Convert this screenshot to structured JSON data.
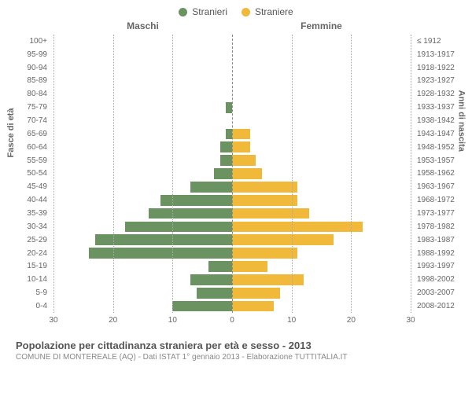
{
  "legend": {
    "male_label": "Stranieri",
    "female_label": "Straniere"
  },
  "headers": {
    "left": "Maschi",
    "right": "Femmine"
  },
  "axis_titles": {
    "left": "Fasce di età",
    "right": "Anni di nascita"
  },
  "chart": {
    "type": "population-pyramid",
    "male_color": "#6b9362",
    "female_color": "#f1b93a",
    "grid_color": "#aaaaaa",
    "center_line_color": "#888888",
    "background_color": "#ffffff",
    "text_color": "#666666",
    "xmax": 30,
    "x_ticks": [
      30,
      20,
      10,
      0,
      10,
      20,
      30
    ],
    "bar_fill_ratio": 0.82,
    "age_groups": [
      {
        "age": "100+",
        "birth": "≤ 1912",
        "m": 0,
        "f": 0
      },
      {
        "age": "95-99",
        "birth": "1913-1917",
        "m": 0,
        "f": 0
      },
      {
        "age": "90-94",
        "birth": "1918-1922",
        "m": 0,
        "f": 0
      },
      {
        "age": "85-89",
        "birth": "1923-1927",
        "m": 0,
        "f": 0
      },
      {
        "age": "80-84",
        "birth": "1928-1932",
        "m": 0,
        "f": 0
      },
      {
        "age": "75-79",
        "birth": "1933-1937",
        "m": 1,
        "f": 0
      },
      {
        "age": "70-74",
        "birth": "1938-1942",
        "m": 0,
        "f": 0
      },
      {
        "age": "65-69",
        "birth": "1943-1947",
        "m": 1,
        "f": 3
      },
      {
        "age": "60-64",
        "birth": "1948-1952",
        "m": 2,
        "f": 3
      },
      {
        "age": "55-59",
        "birth": "1953-1957",
        "m": 2,
        "f": 4
      },
      {
        "age": "50-54",
        "birth": "1958-1962",
        "m": 3,
        "f": 5
      },
      {
        "age": "45-49",
        "birth": "1963-1967",
        "m": 7,
        "f": 11
      },
      {
        "age": "40-44",
        "birth": "1968-1972",
        "m": 12,
        "f": 11
      },
      {
        "age": "35-39",
        "birth": "1973-1977",
        "m": 14,
        "f": 13
      },
      {
        "age": "30-34",
        "birth": "1978-1982",
        "m": 18,
        "f": 22
      },
      {
        "age": "25-29",
        "birth": "1983-1987",
        "m": 23,
        "f": 17
      },
      {
        "age": "20-24",
        "birth": "1988-1992",
        "m": 24,
        "f": 11
      },
      {
        "age": "15-19",
        "birth": "1993-1997",
        "m": 4,
        "f": 6
      },
      {
        "age": "10-14",
        "birth": "1998-2002",
        "m": 7,
        "f": 12
      },
      {
        "age": "5-9",
        "birth": "2003-2007",
        "m": 6,
        "f": 8
      },
      {
        "age": "0-4",
        "birth": "2008-2012",
        "m": 10,
        "f": 7
      }
    ],
    "label_fontsize": 10,
    "header_fontsize": 12
  },
  "footer": {
    "title": "Popolazione per cittadinanza straniera per età e sesso - 2013",
    "subtitle": "COMUNE DI MONTEREALE (AQ) - Dati ISTAT 1° gennaio 2013 - Elaborazione TUTTITALIA.IT"
  }
}
